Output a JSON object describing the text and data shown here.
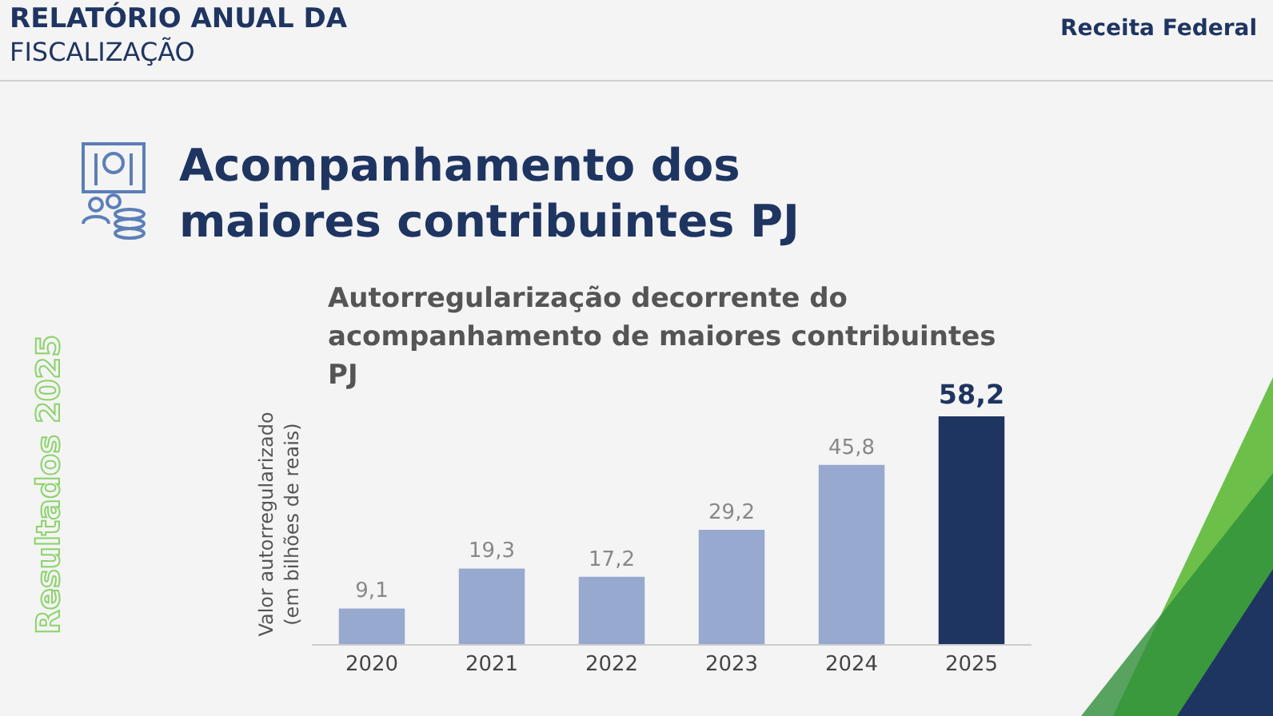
{
  "chart_data": {
    "type": "bar",
    "title": "Acompanhamento dos maiores contribuintes PJ",
    "subtitle": "Autorregularização decorrente do acompanhamento de maiores contribuintes PJ",
    "ylabel": "Valor autorregularizado (em bilhões de reais)",
    "categories": [
      "2020",
      "2021",
      "2022",
      "2023",
      "2024",
      "2025"
    ],
    "values": [
      9.1,
      19.3,
      17.2,
      29.2,
      45.8,
      58.2
    ],
    "colors": [
      "#97a9cf",
      "#97a9cf",
      "#97a9cf",
      "#97a9cf",
      "#97a9cf",
      "#1f3561"
    ],
    "value_labels": [
      "9,1",
      "19,3",
      "17,2",
      "29,2",
      "45,8",
      "58,2"
    ],
    "tick_labels": "x",
    "grid": false,
    "legend": false,
    "annotations": [
      "RELATÓRIO ANUAL DA",
      "FISCALIZAÇÃO",
      "Receita Federal",
      "Resultados 2025"
    ]
  }
}
